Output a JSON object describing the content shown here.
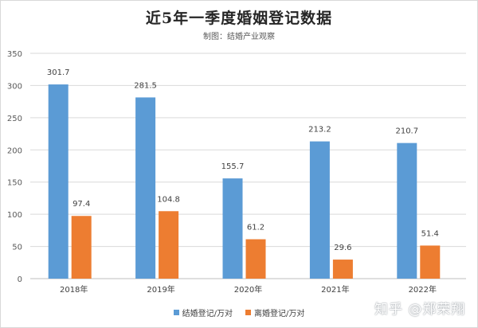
{
  "chart_data": {
    "type": "bar",
    "title": "近5年一季度婚姻登记数据",
    "subtitle": "制图：结婚产业观察",
    "categories": [
      "2018年",
      "2019年",
      "2020年",
      "2021年",
      "2022年"
    ],
    "series": [
      {
        "name": "结婚登记/万对",
        "color": "#5b9bd5",
        "values": [
          301.7,
          281.5,
          155.7,
          213.2,
          210.7
        ],
        "labels": [
          "301.7",
          "281.5",
          "155.7",
          "213.2",
          "210.7"
        ]
      },
      {
        "name": "离婚登记/万对",
        "color": "#ed7d31",
        "values": [
          97.4,
          104.8,
          61.2,
          29.6,
          51.4
        ],
        "labels": [
          "97.4",
          "104.8",
          "61.2",
          "29.6",
          "51.4"
        ]
      }
    ],
    "ylim": [
      0,
      350
    ],
    "yticks": [
      "0",
      "50",
      "100",
      "150",
      "200",
      "250",
      "300",
      "350"
    ],
    "grid": true,
    "legend": "bottom"
  },
  "watermark": "知乎 @郑荣翔"
}
